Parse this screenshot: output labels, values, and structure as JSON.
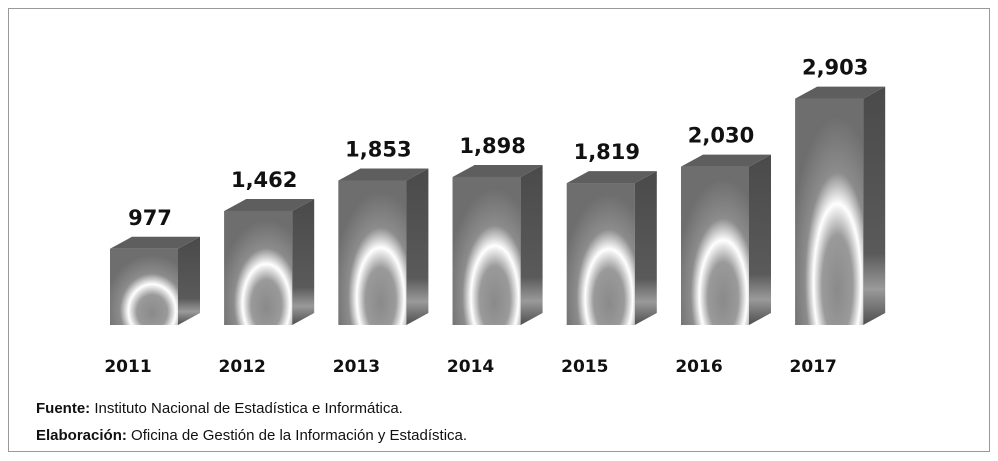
{
  "chart_data": {
    "type": "bar3d",
    "categories": [
      "2011",
      "2012",
      "2013",
      "2014",
      "2015",
      "2016",
      "2017"
    ],
    "values": [
      977,
      1462,
      1853,
      1898,
      1819,
      2030,
      2903
    ],
    "value_labels": [
      "977",
      "1,462",
      "1,853",
      "1,898",
      "1,819",
      "2,030",
      "2,903"
    ],
    "color": "#7a7a7a",
    "notes": [
      {
        "label": "Fuente:",
        "text": "Instituto Nacional de Estadística e Informática."
      },
      {
        "label": "Elaboración:",
        "text": "Oficina de Gestión de la Información y Estadística."
      }
    ]
  }
}
